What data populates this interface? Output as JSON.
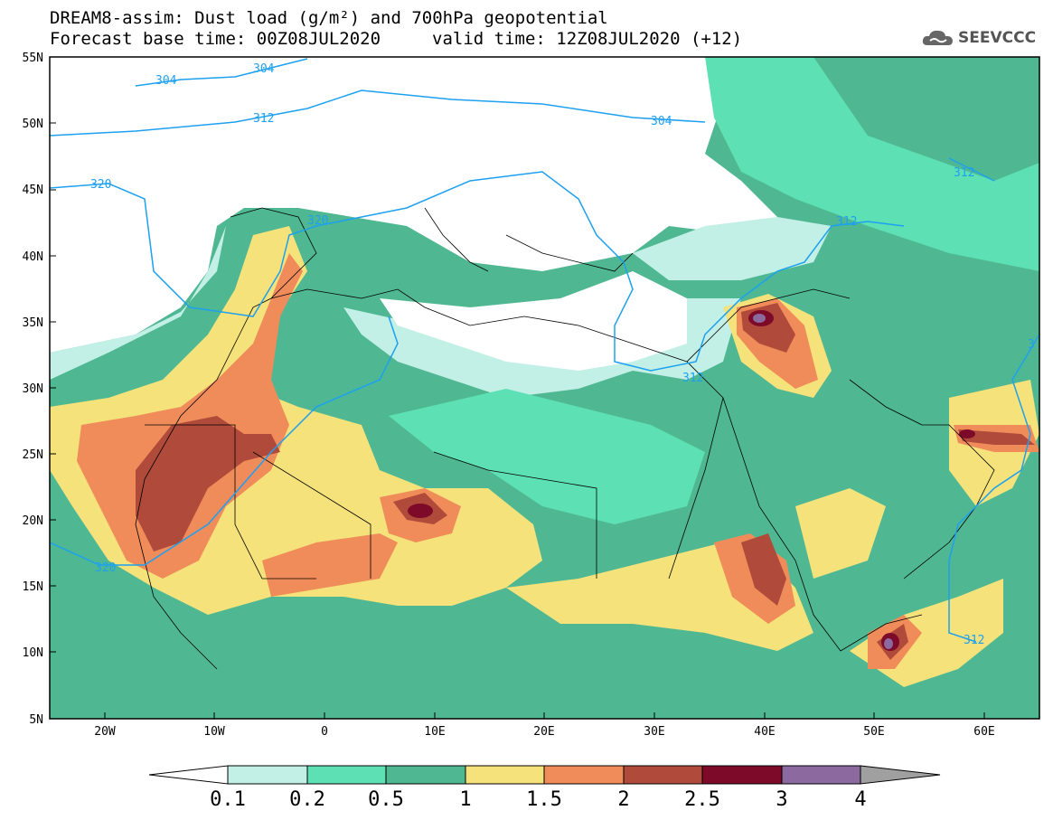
{
  "header": {
    "title": "DREAM8-assim: Dust load (g/m²) and 700hPa geopotential",
    "base_time": "Forecast base time: 00Z08JUL2020",
    "valid_time": "valid time: 12Z08JUL2020 (+12)"
  },
  "logo": {
    "text": "SEEVCCC",
    "icon": "cloud-logo-icon"
  },
  "map": {
    "lat_labels": [
      "55N",
      "50N",
      "45N",
      "40N",
      "35N",
      "30N",
      "25N",
      "20N",
      "15N",
      "10N",
      "5N"
    ],
    "lon_labels": [
      "20W",
      "10W",
      "0",
      "10E",
      "20E",
      "30E",
      "40E",
      "50E",
      "60E"
    ],
    "contour_labels": [
      "304",
      "304",
      "312",
      "304",
      "320",
      "320",
      "312",
      "312",
      "312",
      "320",
      "312",
      "3"
    ],
    "extent": {
      "lon": [
        -25,
        65
      ],
      "lat": [
        5,
        55
      ]
    }
  },
  "colorbar": {
    "labels": [
      "0.1",
      "0.2",
      "0.5",
      "1",
      "1.5",
      "2",
      "2.5",
      "3",
      "4"
    ],
    "colors": [
      "#c2f0e6",
      "#5de0b4",
      "#4fb892",
      "#f5e27a",
      "#f08c5a",
      "#b04a3a",
      "#7e0a2a",
      "#8c6aa0",
      "#a0a0a0"
    ]
  }
}
